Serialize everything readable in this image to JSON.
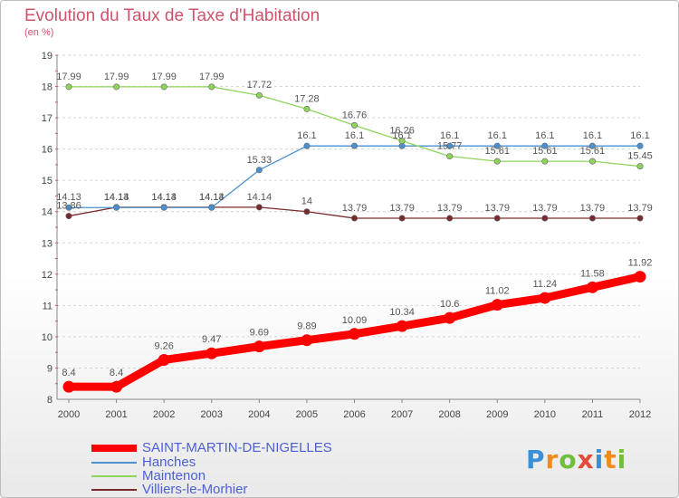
{
  "title": "Evolution du Taux de Taxe d'Habitation",
  "unit_label": "(en %)",
  "logo": {
    "text": "Proxiti",
    "colors": [
      "#3a8fd6",
      "#f08a1c",
      "#6fbf3a",
      "#e24a3a",
      "#3a8fd6",
      "#f08a1c",
      "#6fbf3a"
    ]
  },
  "chart_data": {
    "type": "line",
    "x": [
      "2000",
      "2001",
      "2002",
      "2003",
      "2004",
      "2005",
      "2006",
      "2007",
      "2008",
      "2009",
      "2010",
      "2011",
      "2012"
    ],
    "ylim": [
      8,
      19
    ],
    "yticks": [
      "8",
      "9",
      "10",
      "11",
      "12",
      "13",
      "14",
      "15",
      "16",
      "17",
      "18",
      "19"
    ],
    "grid": "dashed-horizontal",
    "legend_position": "bottom-left",
    "series": [
      {
        "name": "SAINT-MARTIN-DE-NIGELLES",
        "color": "#ff0000",
        "values": [
          8.4,
          8.4,
          9.26,
          9.47,
          9.69,
          9.89,
          10.09,
          10.34,
          10.6,
          11.02,
          11.24,
          11.58,
          11.92
        ],
        "labels": [
          "8.4",
          "8.4",
          "9.26",
          "9.47",
          "9.69",
          "9.89",
          "10.09",
          "10.34",
          "10.6",
          "11.02",
          "11.24",
          "11.58",
          "11.92"
        ]
      },
      {
        "name": "Hanches",
        "color": "#4a90d0",
        "values": [
          14.13,
          14.13,
          14.13,
          14.13,
          15.33,
          16.1,
          16.1,
          16.1,
          16.1,
          16.1,
          16.1,
          16.1,
          16.1
        ],
        "labels": [
          "14.13",
          "14.13",
          "14.13",
          "14.13",
          "15.33",
          "16.1",
          "16.1",
          "16.1",
          "16.1",
          "16.1",
          "16.1",
          "16.1",
          "16.1"
        ]
      },
      {
        "name": "Maintenon",
        "color": "#8fd45a",
        "values": [
          17.99,
          17.99,
          17.99,
          17.99,
          17.72,
          17.28,
          16.76,
          16.26,
          15.77,
          15.61,
          15.61,
          15.61,
          15.45
        ],
        "labels": [
          "17.99",
          "17.99",
          "17.99",
          "17.99",
          "17.72",
          "17.28",
          "16.76",
          "16.26",
          "15.77",
          "15.61",
          "15.61",
          "15.61",
          "15.45"
        ]
      },
      {
        "name": "Villiers-le-Morhier",
        "color": "#7a2a2a",
        "values": [
          13.86,
          14.14,
          14.14,
          14.14,
          14.14,
          14,
          13.79,
          13.79,
          13.79,
          13.79,
          13.79,
          13.79,
          13.79
        ],
        "labels": [
          "13.86",
          "14.14",
          "14.14",
          "14.14",
          "14.14",
          "14",
          "13.79",
          "13.79",
          "13.79",
          "13.79",
          "13.79",
          "13.79",
          "13.79"
        ]
      }
    ]
  }
}
